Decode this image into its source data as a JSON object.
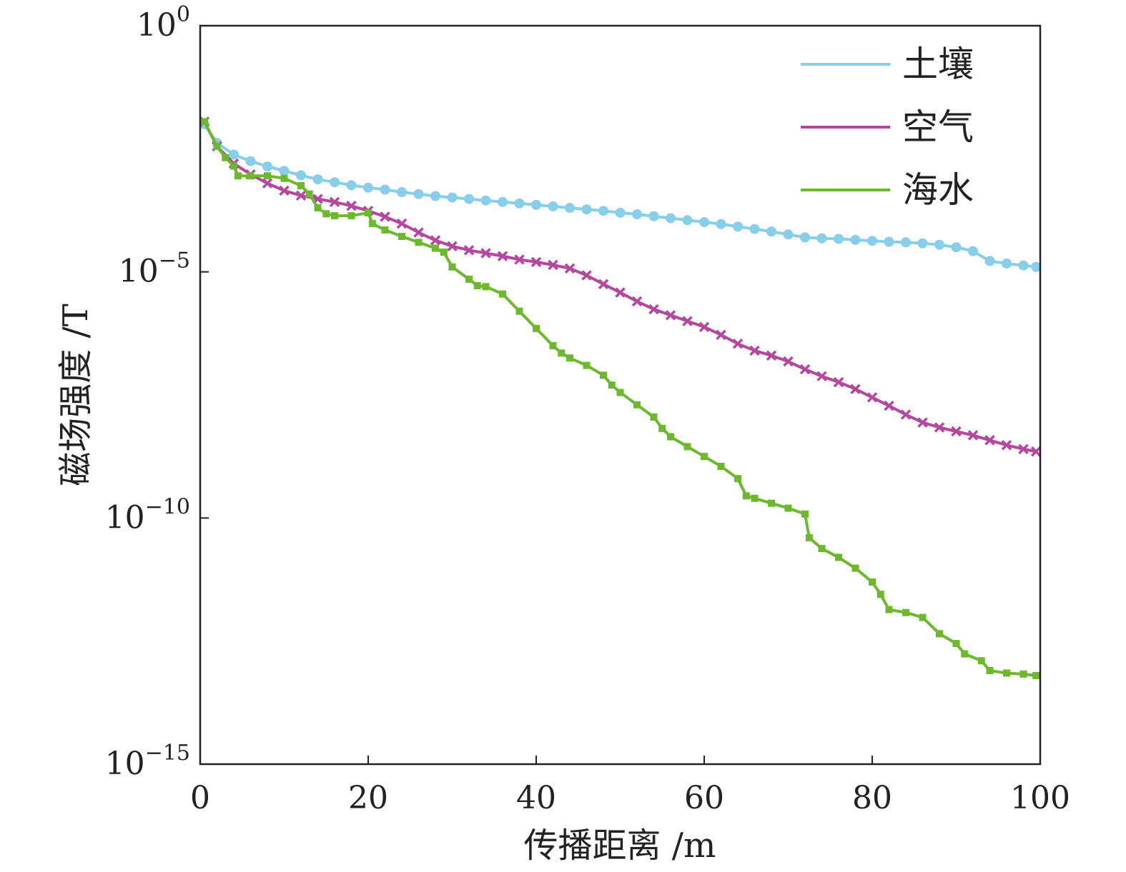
{
  "chart_data": {
    "type": "line",
    "title": "",
    "xlabel": "传播距离 /m",
    "ylabel": "磁场强度 /T",
    "xlim": [
      0,
      100
    ],
    "ylim_log10": [
      -15,
      0
    ],
    "yscale": "log",
    "grid": false,
    "legend_position": "top-right",
    "x_ticks": [
      {
        "value": 0,
        "label": "0"
      },
      {
        "value": 20,
        "label": "20"
      },
      {
        "value": 40,
        "label": "40"
      },
      {
        "value": 60,
        "label": "60"
      },
      {
        "value": 80,
        "label": "80"
      },
      {
        "value": 100,
        "label": "100"
      }
    ],
    "y_ticks": [
      {
        "exp": 0,
        "base": "10",
        "sup": "0"
      },
      {
        "exp": -5,
        "base": "10",
        "sup": "−5"
      },
      {
        "exp": -10,
        "base": "10",
        "sup": "−10"
      },
      {
        "exp": -15,
        "base": "10",
        "sup": "−15"
      }
    ],
    "series": [
      {
        "name": "土壤",
        "color": "#87CEEB",
        "marker": "circle",
        "x": [
          0.5,
          2,
          4,
          6,
          8,
          10,
          12,
          14,
          16,
          18,
          20,
          22,
          24,
          26,
          28,
          30,
          32,
          34,
          36,
          38,
          40,
          42,
          44,
          46,
          48,
          50,
          52,
          54,
          56,
          58,
          60,
          62,
          64,
          66,
          68,
          70,
          72,
          74,
          76,
          78,
          80,
          82,
          84,
          86,
          88,
          90,
          92,
          94,
          96,
          98,
          99.5
        ],
        "y_log10": [
          -2.0,
          -2.38,
          -2.62,
          -2.75,
          -2.86,
          -2.95,
          -3.04,
          -3.12,
          -3.18,
          -3.24,
          -3.29,
          -3.33,
          -3.38,
          -3.42,
          -3.46,
          -3.49,
          -3.52,
          -3.55,
          -3.58,
          -3.61,
          -3.64,
          -3.67,
          -3.7,
          -3.73,
          -3.76,
          -3.8,
          -3.83,
          -3.87,
          -3.91,
          -3.95,
          -3.99,
          -4.03,
          -4.08,
          -4.13,
          -4.18,
          -4.24,
          -4.3,
          -4.32,
          -4.33,
          -4.35,
          -4.37,
          -4.39,
          -4.4,
          -4.42,
          -4.45,
          -4.5,
          -4.58,
          -4.78,
          -4.83,
          -4.87,
          -4.9
        ]
      },
      {
        "name": "空气",
        "color": "#B5479F",
        "marker": "x",
        "x": [
          0.5,
          2,
          4,
          6,
          8,
          10,
          12,
          14,
          16,
          18,
          20,
          22,
          24,
          26,
          28,
          30,
          32,
          34,
          36,
          38,
          40,
          42,
          44,
          46,
          48,
          50,
          52,
          54,
          56,
          58,
          60,
          62,
          64,
          66,
          68,
          70,
          72,
          74,
          76,
          78,
          80,
          82,
          84,
          86,
          88,
          90,
          92,
          94,
          96,
          98,
          99.5
        ],
        "y_log10": [
          -1.95,
          -2.45,
          -2.8,
          -3.02,
          -3.2,
          -3.35,
          -3.45,
          -3.52,
          -3.58,
          -3.66,
          -3.76,
          -3.88,
          -4.02,
          -4.2,
          -4.36,
          -4.48,
          -4.56,
          -4.62,
          -4.68,
          -4.75,
          -4.8,
          -4.86,
          -4.93,
          -5.07,
          -5.25,
          -5.42,
          -5.6,
          -5.76,
          -5.88,
          -6.0,
          -6.12,
          -6.28,
          -6.46,
          -6.6,
          -6.7,
          -6.82,
          -6.98,
          -7.12,
          -7.24,
          -7.38,
          -7.55,
          -7.72,
          -7.9,
          -8.06,
          -8.16,
          -8.24,
          -8.32,
          -8.42,
          -8.52,
          -8.6,
          -8.65
        ]
      },
      {
        "name": "海水",
        "color": "#6DB92D",
        "marker": "square",
        "x": [
          0.5,
          2,
          3,
          4,
          4.5,
          6,
          8,
          10,
          12,
          13,
          14,
          15,
          16,
          18,
          20,
          20.5,
          22,
          24,
          26,
          28,
          29,
          30,
          32,
          33,
          34,
          36,
          38,
          40,
          42,
          43,
          44,
          46,
          48,
          49,
          50,
          52,
          54,
          55,
          56,
          58,
          60,
          62,
          64,
          65,
          66,
          68,
          70,
          72,
          72.5,
          74,
          76,
          78,
          80,
          81,
          82,
          84,
          86,
          88,
          90,
          91,
          93,
          94,
          96,
          98,
          99.5
        ],
        "y_log10": [
          -1.95,
          -2.45,
          -2.68,
          -2.85,
          -3.05,
          -3.05,
          -3.05,
          -3.1,
          -3.25,
          -3.42,
          -3.7,
          -3.82,
          -3.86,
          -3.86,
          -3.8,
          -4.02,
          -4.15,
          -4.28,
          -4.4,
          -4.52,
          -4.6,
          -4.9,
          -5.15,
          -5.28,
          -5.3,
          -5.45,
          -5.8,
          -6.15,
          -6.5,
          -6.65,
          -6.75,
          -6.9,
          -7.1,
          -7.3,
          -7.45,
          -7.7,
          -7.95,
          -8.18,
          -8.35,
          -8.55,
          -8.75,
          -8.95,
          -9.2,
          -9.55,
          -9.6,
          -9.7,
          -9.8,
          -9.92,
          -10.4,
          -10.62,
          -10.8,
          -11.02,
          -11.3,
          -11.55,
          -11.86,
          -11.92,
          -12.02,
          -12.35,
          -12.55,
          -12.76,
          -12.9,
          -13.1,
          -13.15,
          -13.17,
          -13.2
        ]
      }
    ]
  }
}
